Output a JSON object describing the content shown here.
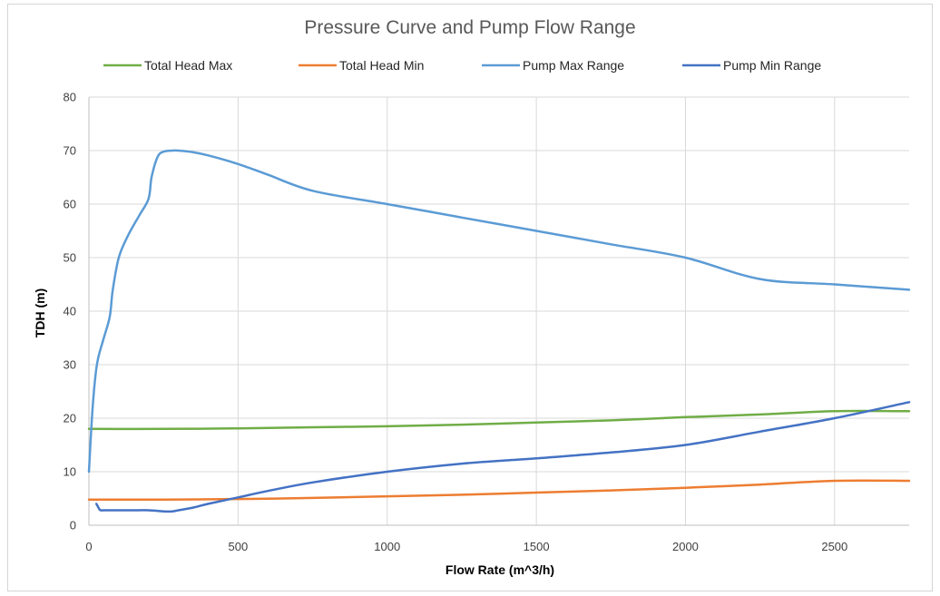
{
  "chart_data": {
    "type": "line",
    "title": "Pressure Curve and Pump Flow Range",
    "xlabel": "Flow Rate (m^3/h)",
    "ylabel": "TDH (m)",
    "xlim": [
      0,
      2750
    ],
    "ylim": [
      0,
      80
    ],
    "x_ticks": [
      0,
      500,
      1000,
      1500,
      2000,
      2500
    ],
    "y_ticks": [
      0,
      10,
      20,
      30,
      40,
      50,
      60,
      70,
      80
    ],
    "grid": true,
    "legend_position": "top",
    "series": [
      {
        "name": "Total Head Max",
        "color": "#70ad47",
        "x": [
          0,
          250,
          500,
          750,
          1000,
          1250,
          1500,
          1750,
          2000,
          2250,
          2500,
          2750
        ],
        "y": [
          18,
          18,
          18.1,
          18.3,
          18.5,
          18.8,
          19.2,
          19.6,
          20.2,
          20.7,
          21.3,
          21.3
        ]
      },
      {
        "name": "Total Head Min",
        "color": "#ed7d31",
        "x": [
          0,
          250,
          500,
          750,
          1000,
          1250,
          1500,
          1750,
          2000,
          2250,
          2500,
          2750
        ],
        "y": [
          4.8,
          4.8,
          4.9,
          5.1,
          5.4,
          5.7,
          6.1,
          6.5,
          7,
          7.6,
          8.3,
          8.3
        ]
      },
      {
        "name": "Pump Max Range",
        "color": "#5b9bd5",
        "x": [
          0,
          10,
          20,
          30,
          50,
          70,
          80,
          100,
          130,
          170,
          200,
          210,
          230,
          250,
          280,
          300,
          350,
          400,
          500,
          600,
          750,
          1000,
          1250,
          1500,
          1750,
          2000,
          2250,
          2500,
          2750
        ],
        "y": [
          10,
          20,
          27,
          31,
          35,
          39,
          44,
          50,
          54,
          58,
          61,
          65,
          68.8,
          69.8,
          70,
          70,
          69.7,
          69.1,
          67.5,
          65.5,
          62.5,
          60,
          57.5,
          55,
          52.5,
          50,
          46,
          45,
          44
        ]
      },
      {
        "name": "Pump Min Range",
        "color": "#4472c4",
        "x": [
          25,
          30,
          35,
          40,
          60,
          100,
          150,
          200,
          250,
          280,
          300,
          350,
          400,
          500,
          600,
          750,
          1000,
          1250,
          1500,
          1750,
          2000,
          2250,
          2500,
          2750
        ],
        "y": [
          4,
          3.5,
          3,
          2.8,
          2.8,
          2.8,
          2.8,
          2.8,
          2.6,
          2.6,
          2.8,
          3.3,
          4,
          5.2,
          6.4,
          8,
          10,
          11.5,
          12.5,
          13.6,
          15,
          17.5,
          20,
          23
        ]
      }
    ]
  }
}
